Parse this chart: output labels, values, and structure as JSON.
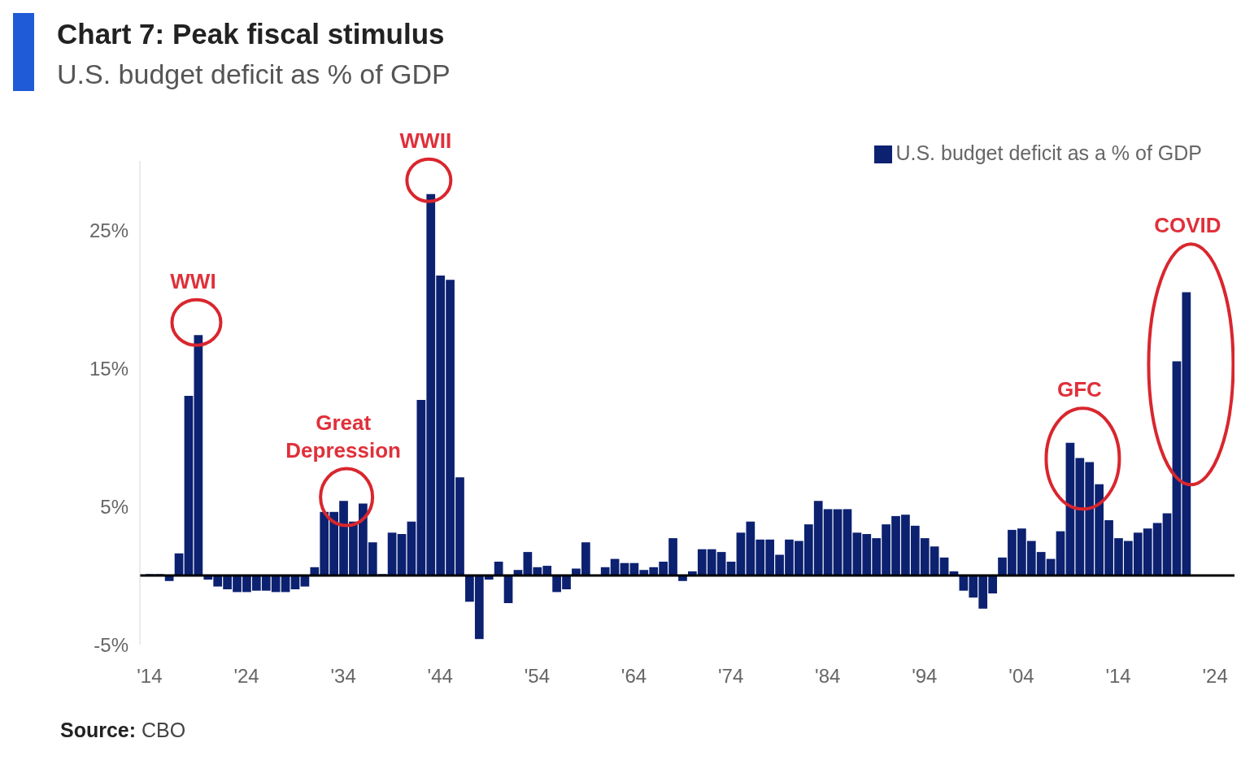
{
  "chart_data": {
    "type": "bar",
    "title": "Chart 7: Peak fiscal stimulus",
    "subtitle": "U.S. budget deficit as % of GDP",
    "x": [
      1914,
      1915,
      1916,
      1917,
      1918,
      1919,
      1920,
      1921,
      1922,
      1923,
      1924,
      1925,
      1926,
      1927,
      1928,
      1929,
      1930,
      1931,
      1932,
      1933,
      1934,
      1935,
      1936,
      1937,
      1938,
      1939,
      1940,
      1941,
      1942,
      1943,
      1944,
      1945,
      1946,
      1947,
      1948,
      1949,
      1950,
      1951,
      1952,
      1953,
      1954,
      1955,
      1956,
      1957,
      1958,
      1959,
      1960,
      1961,
      1962,
      1963,
      1964,
      1965,
      1966,
      1967,
      1968,
      1969,
      1970,
      1971,
      1972,
      1973,
      1974,
      1975,
      1976,
      1977,
      1978,
      1979,
      1980,
      1981,
      1982,
      1983,
      1984,
      1985,
      1986,
      1987,
      1988,
      1989,
      1990,
      1991,
      1992,
      1993,
      1994,
      1995,
      1996,
      1997,
      1998,
      1999,
      2000,
      2001,
      2002,
      2003,
      2004,
      2005,
      2006,
      2007,
      2008,
      2009,
      2010,
      2011,
      2012,
      2013,
      2014,
      2015,
      2016,
      2017,
      2018,
      2019,
      2020,
      2021
    ],
    "series": [
      {
        "name": "U.S. budget deficit as a % of GDP",
        "color": "#0c2170",
        "values": [
          0.1,
          0.1,
          -0.4,
          1.6,
          13.0,
          17.4,
          -0.3,
          -0.8,
          -1.0,
          -1.2,
          -1.2,
          -1.1,
          -1.1,
          -1.2,
          -1.2,
          -1.0,
          -0.8,
          0.6,
          4.6,
          4.6,
          5.4,
          3.9,
          5.2,
          2.4,
          0.1,
          3.1,
          3.0,
          3.9,
          12.7,
          27.6,
          21.7,
          21.4,
          7.1,
          -1.9,
          -4.6,
          -0.3,
          1.0,
          -2.0,
          0.4,
          1.7,
          0.6,
          0.7,
          -1.2,
          -1.0,
          0.5,
          2.4,
          0.0,
          0.6,
          1.2,
          0.9,
          0.9,
          0.4,
          0.6,
          1.0,
          2.7,
          -0.4,
          0.3,
          1.9,
          1.9,
          1.7,
          1.0,
          3.1,
          3.9,
          2.6,
          2.6,
          1.5,
          2.6,
          2.5,
          3.7,
          5.4,
          4.8,
          4.8,
          4.8,
          3.1,
          3.0,
          2.7,
          3.7,
          4.3,
          4.4,
          3.6,
          2.7,
          2.1,
          1.3,
          0.3,
          -1.1,
          -1.6,
          -2.4,
          -1.3,
          1.3,
          3.3,
          3.4,
          2.5,
          1.7,
          1.2,
          3.2,
          9.6,
          8.5,
          8.2,
          6.6,
          4.0,
          2.7,
          2.5,
          3.1,
          3.4,
          3.8,
          4.5,
          15.5,
          20.5
        ]
      }
    ],
    "xlim": [
      1913,
      2026
    ],
    "xticks": [
      {
        "value": 1914,
        "label": "'14"
      },
      {
        "value": 1924,
        "label": "'24"
      },
      {
        "value": 1934,
        "label": "'34"
      },
      {
        "value": 1944,
        "label": "'44"
      },
      {
        "value": 1954,
        "label": "'54"
      },
      {
        "value": 1964,
        "label": "'64"
      },
      {
        "value": 1974,
        "label": "'74"
      },
      {
        "value": 1984,
        "label": "'84"
      },
      {
        "value": 1994,
        "label": "'94"
      },
      {
        "value": 2004,
        "label": "'04"
      },
      {
        "value": 2014,
        "label": "'14"
      },
      {
        "value": 2024,
        "label": "'24"
      }
    ],
    "yticks": [
      {
        "value": -5,
        "label": "-5%"
      },
      {
        "value": 5,
        "label": "5%"
      },
      {
        "value": 15,
        "label": "15%"
      },
      {
        "value": 25,
        "label": "25%"
      }
    ],
    "ylim": [
      -5,
      30
    ],
    "ref_lines": [
      {
        "axis": "y",
        "value": 0,
        "color": "#000000"
      }
    ],
    "annotations": [
      {
        "text": "WWI",
        "x": 1919,
        "y": 17.4
      },
      {
        "text": "Great Depression",
        "x": 1934,
        "y": 5.4
      },
      {
        "text": "WWII",
        "x": 1943,
        "y": 27.6
      },
      {
        "text": "GFC",
        "x": 2010,
        "y": 8.5
      },
      {
        "text": "COVID",
        "x": 2021,
        "y": 20.5
      },
      "Source: CBO"
    ],
    "grid": false,
    "legend": "top right"
  }
}
